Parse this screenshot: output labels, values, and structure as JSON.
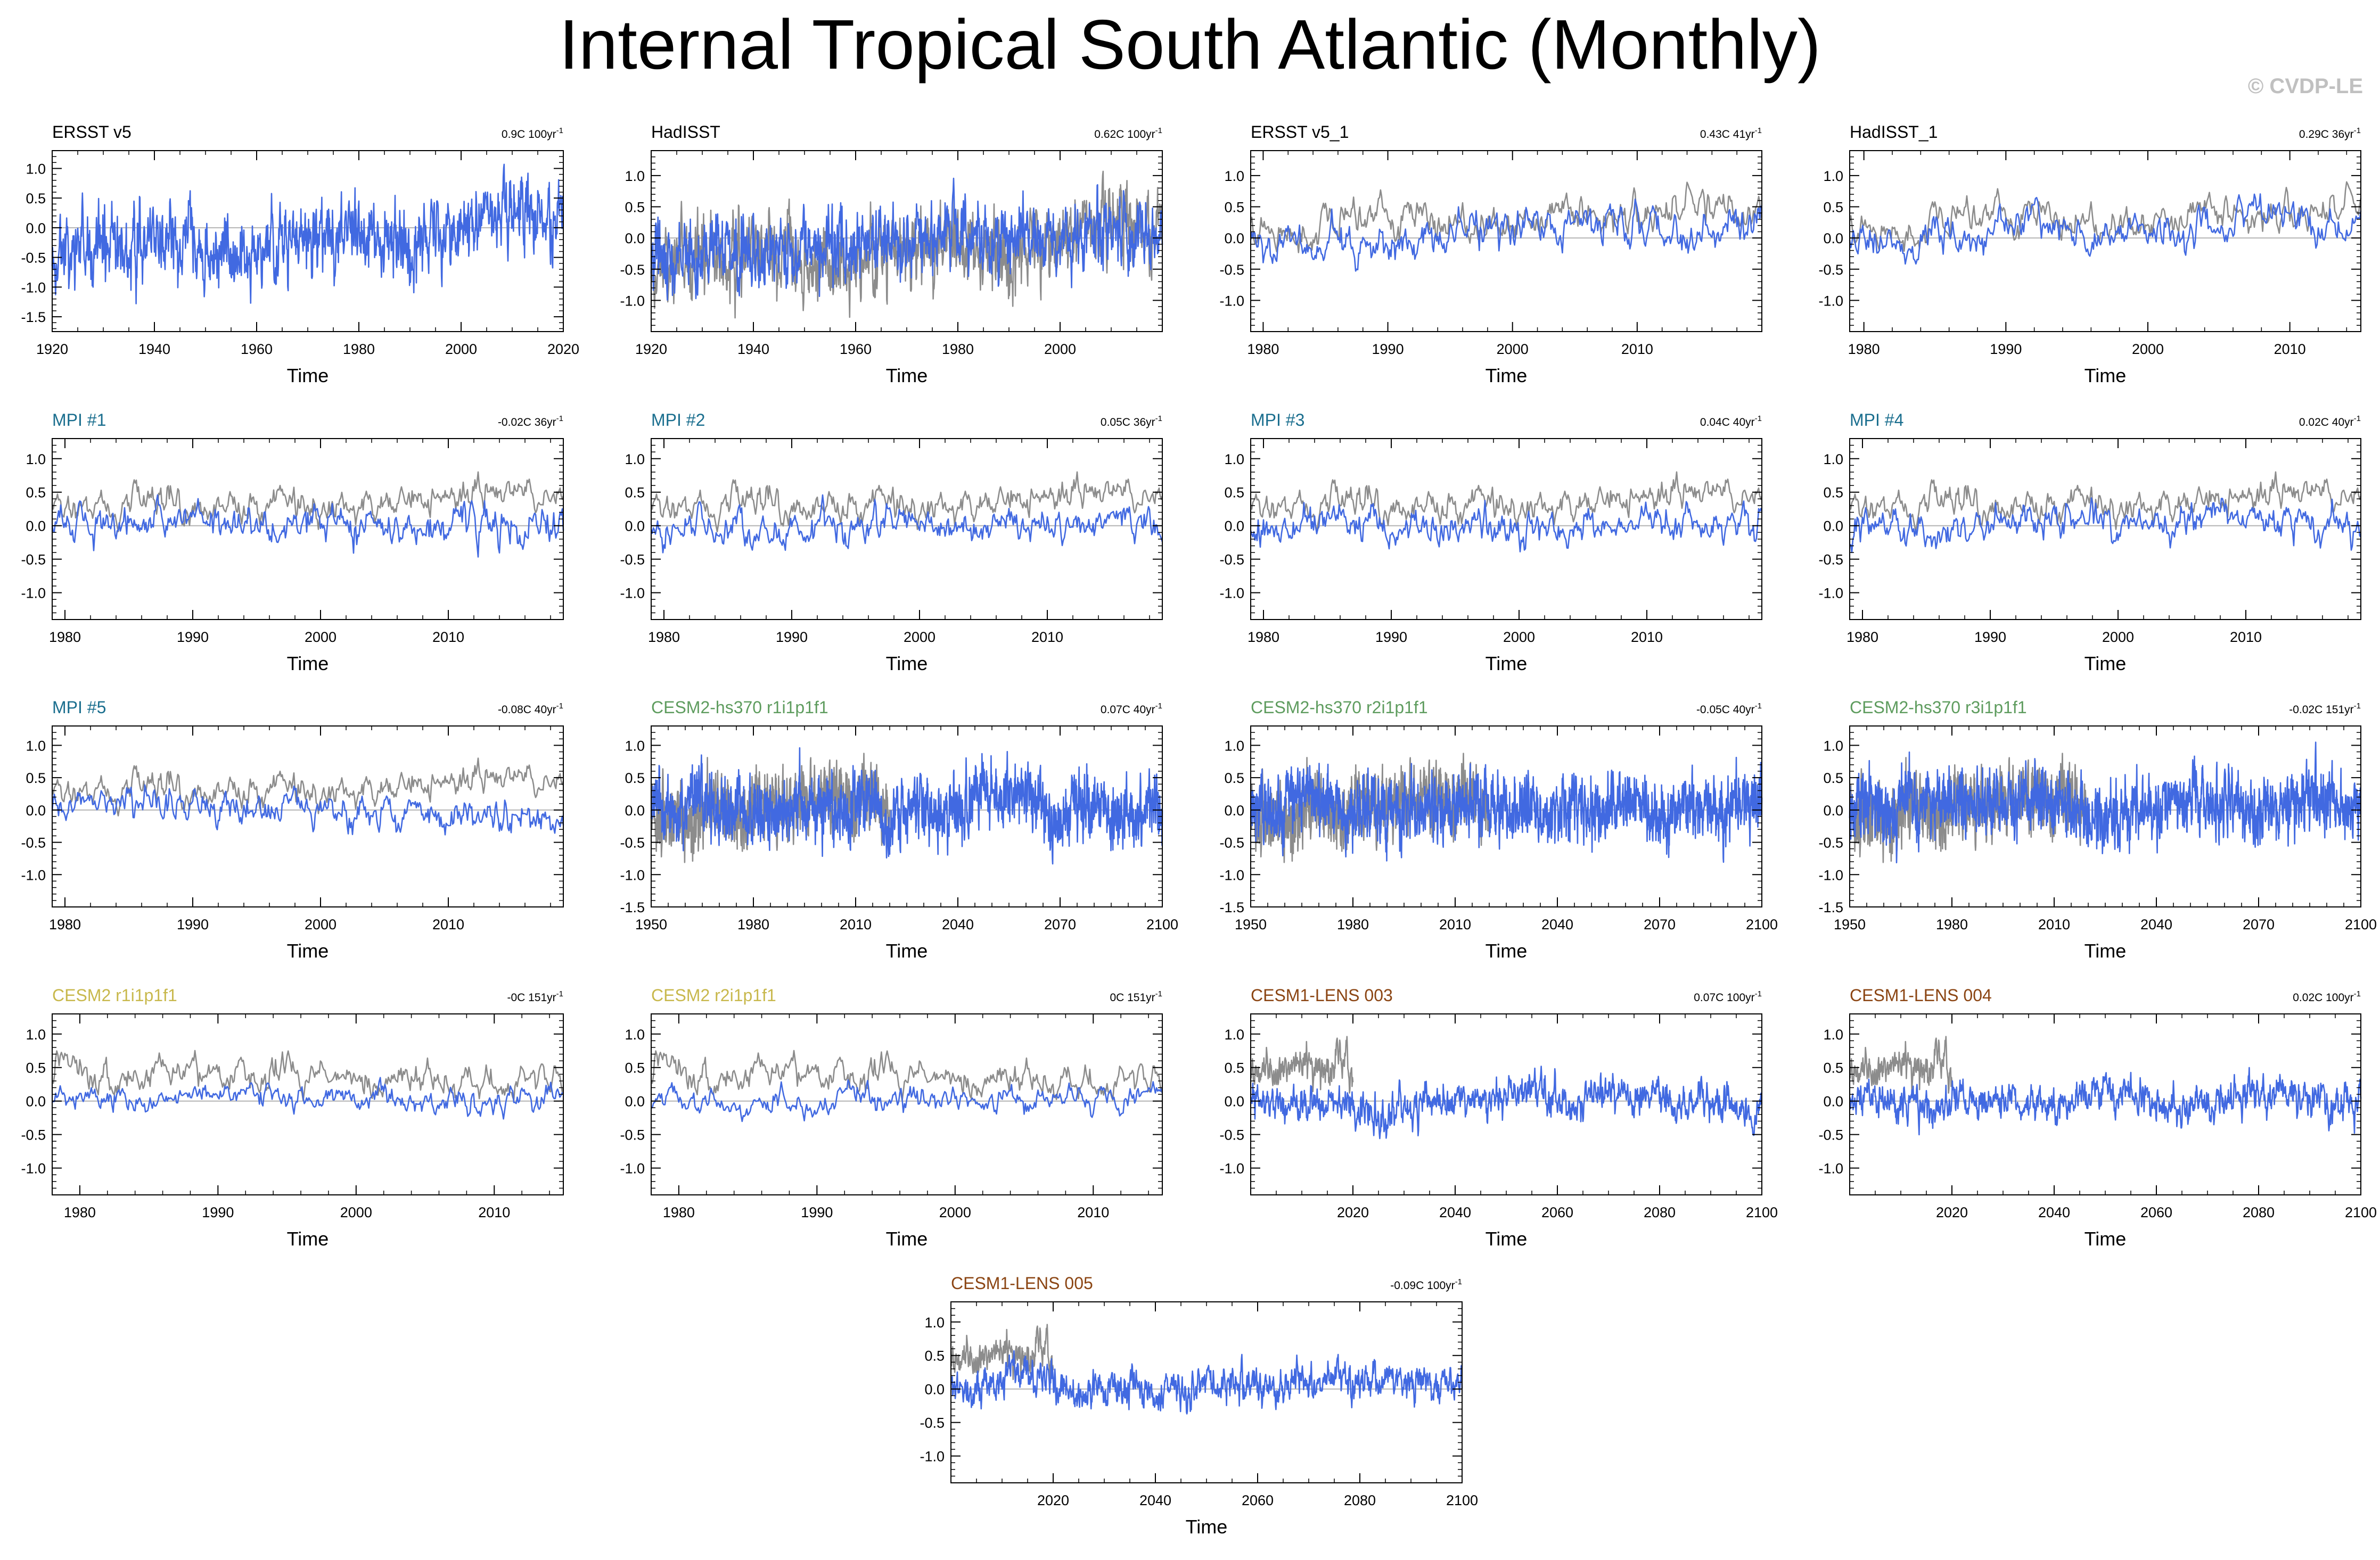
{
  "title": "Internal Tropical South Atlantic (Monthly)",
  "credit": "© CVDP-LE",
  "colors": {
    "series_blue": "#4169e1",
    "observed_gray": "#8c8c8c",
    "zero_line": "#b4b4b4",
    "group_obs": "#000000",
    "group_mpi": "#1a6e8e",
    "group_cesm2_hs370": "#5e9c5e",
    "group_cesm2": "#c8b84c",
    "group_cesm1_lens": "#8b4513"
  },
  "trend_unit_exp": "-1",
  "chart_data": [
    {
      "type": "line",
      "label": "ERSST v5",
      "trend": "0.9C 100yr",
      "title_color": "group_obs",
      "xlabel": "Time",
      "xlim": [
        1920,
        2020
      ],
      "xticks": [
        1920,
        1940,
        1960,
        1980,
        2000,
        2020
      ],
      "ylim": [
        -1.75,
        1.3
      ],
      "yticks": [
        "1.0",
        "0.5",
        "0.0",
        "-0.5",
        "-1.0",
        "-1.5"
      ],
      "series": [
        {
          "name": "ERSST v5",
          "color": "series_blue",
          "start": 1920,
          "end": 2020,
          "seed": 11,
          "amp": 0.55,
          "offset": -0.15,
          "trend": 0.45,
          "smooth": 0.5
        }
      ]
    },
    {
      "type": "line",
      "label": "HadISST",
      "trend": "0.62C 100yr",
      "title_color": "group_obs",
      "xlabel": "Time",
      "xlim": [
        1920,
        2020
      ],
      "xticks": [
        1920,
        1940,
        1960,
        1980,
        2000
      ],
      "ylim": [
        -1.5,
        1.4
      ],
      "yticks": [
        "1.0",
        "0.5",
        "0.0",
        "-0.5",
        "-1.0"
      ],
      "series": [
        {
          "name": "ERSST v5",
          "color": "observed_gray",
          "start": 1920,
          "end": 2020,
          "seed": 11,
          "amp": 0.55,
          "offset": -0.15,
          "trend": 0.45,
          "smooth": 0.5
        },
        {
          "name": "HadISST",
          "color": "series_blue",
          "start": 1920,
          "end": 2020,
          "seed": 12,
          "amp": 0.5,
          "offset": -0.1,
          "trend": 0.32,
          "smooth": 0.5
        }
      ]
    },
    {
      "type": "line",
      "label": "ERSST v5_1",
      "trend": "0.43C 41yr",
      "title_color": "group_obs",
      "xlabel": "Time",
      "xlim": [
        1979,
        2020
      ],
      "xticks": [
        1980,
        1990,
        2000,
        2010
      ],
      "ylim": [
        -1.5,
        1.4
      ],
      "yticks": [
        "1.0",
        "0.5",
        "0.0",
        "-0.5",
        "-1.0"
      ],
      "series": [
        {
          "name": "ERSST v5",
          "color": "observed_gray",
          "start": 1979,
          "end": 2020,
          "seed": 21,
          "amp": 0.35,
          "offset": 0.3,
          "trend": 0.25,
          "smooth": 0.7
        },
        {
          "name": "ERSST v5_1",
          "color": "series_blue",
          "start": 1979,
          "end": 2020,
          "seed": 22,
          "amp": 0.4,
          "offset": 0.05,
          "trend": 0.25,
          "smooth": 0.7
        }
      ]
    },
    {
      "type": "line",
      "label": "HadISST_1",
      "trend": "0.29C 36yr",
      "title_color": "group_obs",
      "xlabel": "Time",
      "xlim": [
        1979,
        2015
      ],
      "xticks": [
        1980,
        1990,
        2000,
        2010
      ],
      "ylim": [
        -1.5,
        1.4
      ],
      "yticks": [
        "1.0",
        "0.5",
        "0.0",
        "-0.5",
        "-1.0"
      ],
      "series": [
        {
          "name": "ERSST v5",
          "color": "observed_gray",
          "start": 1979,
          "end": 2015,
          "seed": 21,
          "amp": 0.35,
          "offset": 0.3,
          "trend": 0.2,
          "smooth": 0.7
        },
        {
          "name": "HadISST_1",
          "color": "series_blue",
          "start": 1979,
          "end": 2015,
          "seed": 23,
          "amp": 0.38,
          "offset": 0.05,
          "trend": 0.2,
          "smooth": 0.7
        }
      ]
    },
    {
      "type": "line",
      "label": "MPI #1",
      "trend": "-0.02C 36yr",
      "title_color": "group_mpi",
      "xlabel": "Time",
      "xlim": [
        1979,
        2019
      ],
      "xticks": [
        1980,
        1990,
        2000,
        2010
      ],
      "ylim": [
        -1.4,
        1.3
      ],
      "yticks": [
        "1.0",
        "0.5",
        "0.0",
        "-0.5",
        "-1.0"
      ],
      "series": [
        {
          "name": "ERSST v5",
          "color": "observed_gray",
          "start": 1979,
          "end": 2019,
          "seed": 31,
          "amp": 0.3,
          "offset": 0.35,
          "trend": 0.1,
          "smooth": 0.72
        },
        {
          "name": "MPI #1",
          "color": "series_blue",
          "start": 1979,
          "end": 2019,
          "seed": 32,
          "amp": 0.35,
          "offset": 0.0,
          "trend": 0.0,
          "smooth": 0.7
        }
      ]
    },
    {
      "type": "line",
      "label": "MPI #2",
      "trend": "0.05C 36yr",
      "title_color": "group_mpi",
      "xlabel": "Time",
      "xlim": [
        1979,
        2019
      ],
      "xticks": [
        1980,
        1990,
        2000,
        2010
      ],
      "ylim": [
        -1.4,
        1.3
      ],
      "yticks": [
        "1.0",
        "0.5",
        "0.0",
        "-0.5",
        "-1.0"
      ],
      "series": [
        {
          "name": "ERSST v5",
          "color": "observed_gray",
          "start": 1979,
          "end": 2019,
          "seed": 31,
          "amp": 0.3,
          "offset": 0.35,
          "trend": 0.1,
          "smooth": 0.72
        },
        {
          "name": "MPI #2",
          "color": "series_blue",
          "start": 1979,
          "end": 2019,
          "seed": 33,
          "amp": 0.32,
          "offset": 0.0,
          "trend": 0.05,
          "smooth": 0.7
        }
      ]
    },
    {
      "type": "line",
      "label": "MPI #3",
      "trend": "0.04C 40yr",
      "title_color": "group_mpi",
      "xlabel": "Time",
      "xlim": [
        1979,
        2019
      ],
      "xticks": [
        1980,
        1990,
        2000,
        2010
      ],
      "ylim": [
        -1.4,
        1.3
      ],
      "yticks": [
        "1.0",
        "0.5",
        "0.0",
        "-0.5",
        "-1.0"
      ],
      "series": [
        {
          "name": "ERSST v5",
          "color": "observed_gray",
          "start": 1979,
          "end": 2019,
          "seed": 31,
          "amp": 0.3,
          "offset": 0.35,
          "trend": 0.1,
          "smooth": 0.72
        },
        {
          "name": "MPI #3",
          "color": "series_blue",
          "start": 1979,
          "end": 2019,
          "seed": 34,
          "amp": 0.33,
          "offset": 0.0,
          "trend": 0.04,
          "smooth": 0.7
        }
      ]
    },
    {
      "type": "line",
      "label": "MPI #4",
      "trend": "0.02C 40yr",
      "title_color": "group_mpi",
      "xlabel": "Time",
      "xlim": [
        1979,
        2019
      ],
      "xticks": [
        1980,
        1990,
        2000,
        2010
      ],
      "ylim": [
        -1.4,
        1.3
      ],
      "yticks": [
        "1.0",
        "0.5",
        "0.0",
        "-0.5",
        "-1.0"
      ],
      "series": [
        {
          "name": "ERSST v5",
          "color": "observed_gray",
          "start": 1979,
          "end": 2019,
          "seed": 31,
          "amp": 0.3,
          "offset": 0.35,
          "trend": 0.1,
          "smooth": 0.72
        },
        {
          "name": "MPI #4",
          "color": "series_blue",
          "start": 1979,
          "end": 2019,
          "seed": 35,
          "amp": 0.33,
          "offset": 0.0,
          "trend": 0.02,
          "smooth": 0.7
        }
      ]
    },
    {
      "type": "line",
      "label": "MPI #5",
      "trend": "-0.08C 40yr",
      "title_color": "group_mpi",
      "xlabel": "Time",
      "xlim": [
        1979,
        2019
      ],
      "xticks": [
        1980,
        1990,
        2000,
        2010
      ],
      "ylim": [
        -1.5,
        1.3
      ],
      "yticks": [
        "1.0",
        "0.5",
        "0.0",
        "-0.5",
        "-1.0"
      ],
      "series": [
        {
          "name": "ERSST v5",
          "color": "observed_gray",
          "start": 1979,
          "end": 2019,
          "seed": 31,
          "amp": 0.3,
          "offset": 0.35,
          "trend": 0.1,
          "smooth": 0.72
        },
        {
          "name": "MPI #5",
          "color": "series_blue",
          "start": 1979,
          "end": 2019,
          "seed": 36,
          "amp": 0.33,
          "offset": 0.05,
          "trend": -0.08,
          "smooth": 0.7
        }
      ]
    },
    {
      "type": "line",
      "label": "CESM2-hs370 r1i1p1f1",
      "trend": "0.07C 40yr",
      "title_color": "group_cesm2_hs370",
      "xlabel": "Time",
      "xlim": [
        1950,
        2100
      ],
      "xticks": [
        1950,
        1980,
        2010,
        2040,
        2070,
        2100
      ],
      "ylim": [
        -1.5,
        1.3
      ],
      "yticks": [
        "1.0",
        "0.5",
        "0.0",
        "-0.5",
        "-1.0",
        "-1.5"
      ],
      "series": [
        {
          "name": "ERSST v5",
          "color": "observed_gray",
          "start": 1950,
          "end": 2020,
          "seed": 41,
          "amp": 0.45,
          "offset": 0.1,
          "trend": 0.3,
          "smooth": 0.45
        },
        {
          "name": "CESM2-hs370 r1i1p1f1",
          "color": "series_blue",
          "start": 1950,
          "end": 2100,
          "seed": 42,
          "amp": 0.42,
          "offset": 0.1,
          "trend": 0.0,
          "smooth": 0.45
        }
      ]
    },
    {
      "type": "line",
      "label": "CESM2-hs370 r2i1p1f1",
      "trend": "-0.05C 40yr",
      "title_color": "group_cesm2_hs370",
      "xlabel": "Time",
      "xlim": [
        1950,
        2100
      ],
      "xticks": [
        1950,
        1980,
        2010,
        2040,
        2070,
        2100
      ],
      "ylim": [
        -1.5,
        1.3
      ],
      "yticks": [
        "1.0",
        "0.5",
        "0.0",
        "-0.5",
        "-1.0",
        "-1.5"
      ],
      "series": [
        {
          "name": "ERSST v5",
          "color": "observed_gray",
          "start": 1950,
          "end": 2020,
          "seed": 41,
          "amp": 0.45,
          "offset": 0.1,
          "trend": 0.3,
          "smooth": 0.45
        },
        {
          "name": "CESM2-hs370 r2i1p1f1",
          "color": "series_blue",
          "start": 1950,
          "end": 2100,
          "seed": 43,
          "amp": 0.42,
          "offset": 0.05,
          "trend": 0.0,
          "smooth": 0.45
        }
      ]
    },
    {
      "type": "line",
      "label": "CESM2-hs370 r3i1p1f1",
      "trend": "-0.02C 151yr",
      "title_color": "group_cesm2_hs370",
      "xlabel": "Time",
      "xlim": [
        1950,
        2100
      ],
      "xticks": [
        1950,
        1980,
        2010,
        2040,
        2070,
        2100
      ],
      "ylim": [
        -1.5,
        1.3
      ],
      "yticks": [
        "1.0",
        "0.5",
        "0.0",
        "-0.5",
        "-1.0",
        "-1.5"
      ],
      "series": [
        {
          "name": "ERSST v5",
          "color": "observed_gray",
          "start": 1950,
          "end": 2020,
          "seed": 41,
          "amp": 0.45,
          "offset": 0.1,
          "trend": 0.3,
          "smooth": 0.45
        },
        {
          "name": "CESM2-hs370 r3i1p1f1",
          "color": "series_blue",
          "start": 1950,
          "end": 2100,
          "seed": 44,
          "amp": 0.42,
          "offset": 0.08,
          "trend": -0.02,
          "smooth": 0.45
        }
      ]
    },
    {
      "type": "line",
      "label": "CESM2 r1i1p1f1",
      "trend": "-0C 151yr",
      "title_color": "group_cesm2",
      "xlabel": "Time",
      "xlim": [
        1978,
        2015
      ],
      "xticks": [
        1980,
        1990,
        2000,
        2010
      ],
      "ylim": [
        -1.4,
        1.3
      ],
      "yticks": [
        "1.0",
        "0.5",
        "0.0",
        "-0.5",
        "-1.0"
      ],
      "series": [
        {
          "name": "ERSST v5",
          "color": "observed_gray",
          "start": 1978,
          "end": 2015,
          "seed": 51,
          "amp": 0.32,
          "offset": 0.35,
          "trend": 0.05,
          "smooth": 0.72
        },
        {
          "name": "CESM2 r1i1p1f1",
          "color": "series_blue",
          "start": 1978,
          "end": 2015,
          "seed": 52,
          "amp": 0.28,
          "offset": 0.05,
          "trend": 0.0,
          "smooth": 0.75
        }
      ]
    },
    {
      "type": "line",
      "label": "CESM2 r2i1p1f1",
      "trend": "0C 151yr",
      "title_color": "group_cesm2",
      "xlabel": "Time",
      "xlim": [
        1978,
        2015
      ],
      "xticks": [
        1980,
        1990,
        2000,
        2010
      ],
      "ylim": [
        -1.4,
        1.3
      ],
      "yticks": [
        "1.0",
        "0.5",
        "0.0",
        "-0.5",
        "-1.0"
      ],
      "series": [
        {
          "name": "ERSST v5",
          "color": "observed_gray",
          "start": 1978,
          "end": 2015,
          "seed": 51,
          "amp": 0.32,
          "offset": 0.35,
          "trend": 0.05,
          "smooth": 0.72
        },
        {
          "name": "CESM2 r2i1p1f1",
          "color": "series_blue",
          "start": 1978,
          "end": 2015,
          "seed": 53,
          "amp": 0.28,
          "offset": 0.0,
          "trend": 0.05,
          "smooth": 0.75
        }
      ]
    },
    {
      "type": "line",
      "label": "CESM1-LENS 003",
      "trend": "0.07C 100yr",
      "title_color": "group_cesm1_lens",
      "xlabel": "Time",
      "xlim": [
        2000,
        2100
      ],
      "xticks": [
        2020,
        2040,
        2060,
        2080,
        2100
      ],
      "ylim": [
        -1.4,
        1.3
      ],
      "yticks": [
        "1.0",
        "0.5",
        "0.0",
        "-0.5",
        "-1.0"
      ],
      "series": [
        {
          "name": "ERSST v5",
          "color": "observed_gray",
          "start": 2000,
          "end": 2020,
          "seed": 61,
          "amp": 0.3,
          "offset": 0.4,
          "trend": 0.3,
          "smooth": 0.6
        },
        {
          "name": "CESM1-LENS 003",
          "color": "series_blue",
          "start": 2000,
          "end": 2100,
          "seed": 62,
          "amp": 0.27,
          "offset": 0.0,
          "trend": 0.05,
          "smooth": 0.6
        }
      ]
    },
    {
      "type": "line",
      "label": "CESM1-LENS 004",
      "trend": "0.02C 100yr",
      "title_color": "group_cesm1_lens",
      "xlabel": "Time",
      "xlim": [
        2000,
        2100
      ],
      "xticks": [
        2020,
        2040,
        2060,
        2080,
        2100
      ],
      "ylim": [
        -1.4,
        1.3
      ],
      "yticks": [
        "1.0",
        "0.5",
        "0.0",
        "-0.5",
        "-1.0"
      ],
      "series": [
        {
          "name": "ERSST v5",
          "color": "observed_gray",
          "start": 2000,
          "end": 2020,
          "seed": 61,
          "amp": 0.3,
          "offset": 0.4,
          "trend": 0.3,
          "smooth": 0.6
        },
        {
          "name": "CESM1-LENS 004",
          "color": "series_blue",
          "start": 2000,
          "end": 2100,
          "seed": 63,
          "amp": 0.27,
          "offset": 0.0,
          "trend": 0.02,
          "smooth": 0.6
        }
      ]
    },
    {
      "type": "line",
      "label": "CESM1-LENS 005",
      "trend": "-0.09C 100yr",
      "title_color": "group_cesm1_lens",
      "xlabel": "Time",
      "xlim": [
        2000,
        2100
      ],
      "xticks": [
        2020,
        2040,
        2060,
        2080,
        2100
      ],
      "ylim": [
        -1.4,
        1.3
      ],
      "yticks": [
        "1.0",
        "0.5",
        "0.0",
        "-0.5",
        "-1.0"
      ],
      "series": [
        {
          "name": "ERSST v5",
          "color": "observed_gray",
          "start": 2000,
          "end": 2020,
          "seed": 61,
          "amp": 0.3,
          "offset": 0.4,
          "trend": 0.3,
          "smooth": 0.6
        },
        {
          "name": "CESM1-LENS 005",
          "color": "series_blue",
          "start": 2000,
          "end": 2100,
          "seed": 64,
          "amp": 0.27,
          "offset": 0.05,
          "trend": -0.09,
          "smooth": 0.6
        }
      ]
    }
  ]
}
